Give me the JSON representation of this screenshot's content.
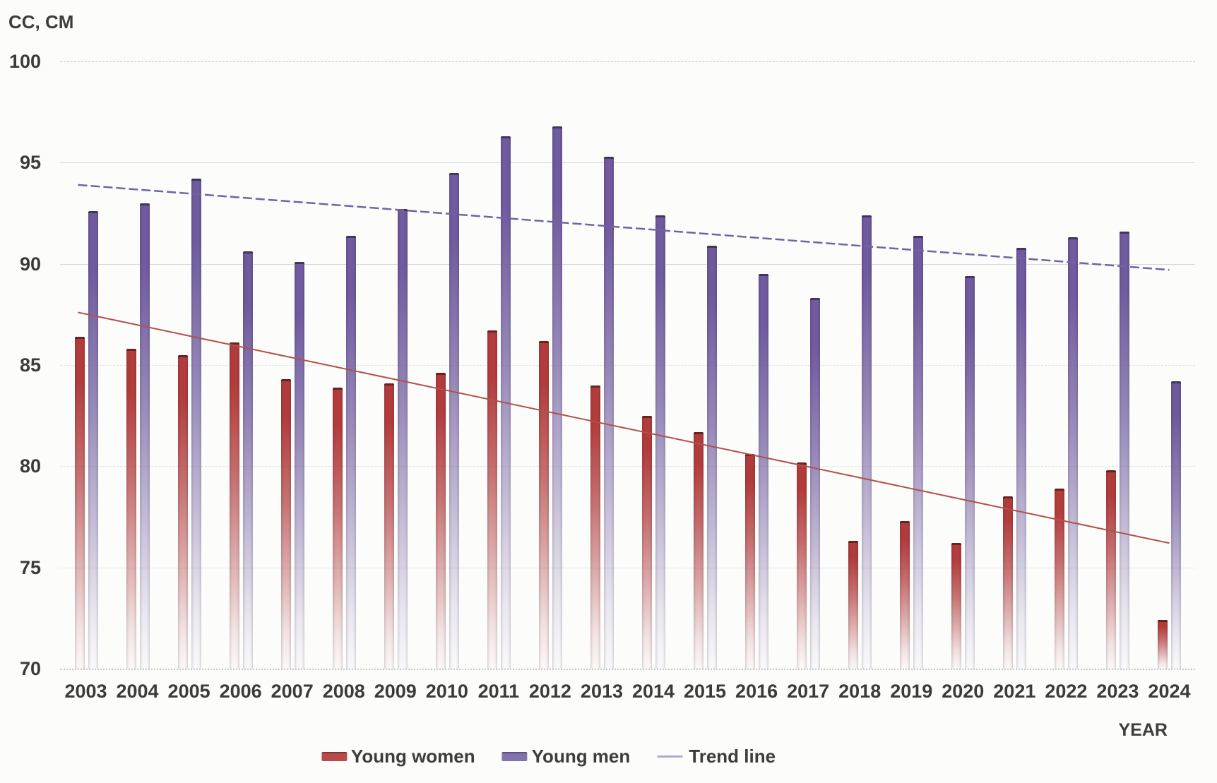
{
  "chart_data": {
    "type": "bar",
    "title": "",
    "y_axis_title": "CC, CM",
    "x_axis_title": "YEAR",
    "ylim": [
      70,
      100
    ],
    "yticks": [
      100,
      95,
      90,
      85,
      80,
      75,
      70
    ],
    "grid": true,
    "legend_position": "bottom",
    "categories": [
      "2003",
      "2004",
      "2005",
      "2006",
      "2007",
      "2008",
      "2009",
      "2010",
      "2011",
      "2012",
      "2013",
      "2014",
      "2015",
      "2016",
      "2017",
      "2018",
      "2019",
      "2020",
      "2021",
      "2022",
      "2023",
      "2024"
    ],
    "series": [
      {
        "name": "Young women",
        "color": "#b23c3c",
        "values": [
          86.4,
          85.8,
          85.5,
          86.1,
          84.3,
          83.9,
          84.1,
          84.6,
          86.7,
          86.2,
          84.0,
          82.5,
          81.7,
          80.6,
          80.2,
          76.3,
          77.3,
          76.2,
          78.5,
          78.9,
          79.8,
          72.4
        ]
      },
      {
        "name": "Young men",
        "color": "#6f5b9e",
        "values": [
          92.6,
          93.0,
          94.2,
          90.6,
          90.1,
          91.4,
          92.7,
          94.5,
          96.3,
          96.8,
          95.3,
          92.4,
          90.9,
          89.5,
          88.3,
          92.4,
          91.4,
          89.4,
          90.8,
          91.3,
          91.6,
          84.2
        ]
      }
    ],
    "trend_lines": [
      {
        "name": "Trend line (Young men)",
        "color": "#7163a4",
        "start": 93.9,
        "end": 89.7,
        "dashed": true
      },
      {
        "name": "Trend line (Young women)",
        "color": "#b0514c",
        "start": 87.6,
        "end": 76.2,
        "dashed": false
      }
    ],
    "legend": [
      {
        "label": "Young women",
        "swatch": "#b84a4a",
        "type": "box"
      },
      {
        "label": "Young men",
        "swatch": "#8172ad",
        "type": "box"
      },
      {
        "label": "Trend line",
        "swatch": "#b5aacb",
        "type": "line"
      }
    ]
  }
}
